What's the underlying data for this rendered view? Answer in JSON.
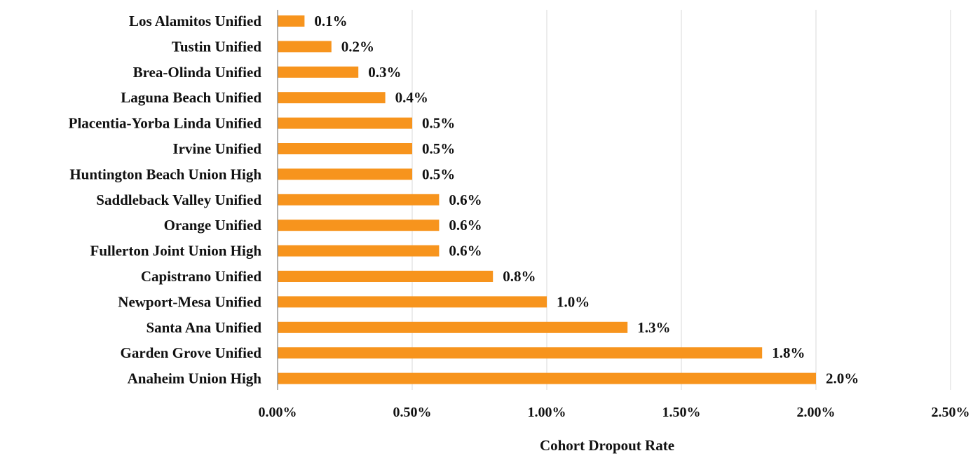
{
  "chart_data": {
    "type": "bar",
    "orientation": "horizontal",
    "categories": [
      "Los Alamitos Unified",
      "Tustin Unified",
      "Brea-Olinda Unified",
      "Laguna Beach Unified",
      "Placentia-Yorba Linda Unified",
      "Irvine Unified",
      "Huntington Beach Union High",
      "Saddleback Valley Unified",
      "Orange Unified",
      "Fullerton Joint Union High",
      "Capistrano Unified",
      "Newport-Mesa Unified",
      "Santa Ana Unified",
      "Garden Grove Unified",
      "Anaheim Union High"
    ],
    "values": [
      0.1,
      0.2,
      0.3,
      0.4,
      0.5,
      0.5,
      0.5,
      0.6,
      0.6,
      0.6,
      0.8,
      1.0,
      1.3,
      1.8,
      2.0
    ],
    "data_labels": [
      "0.1%",
      "0.2%",
      "0.3%",
      "0.4%",
      "0.5%",
      "0.5%",
      "0.5%",
      "0.6%",
      "0.6%",
      "0.6%",
      "0.8%",
      "1.0%",
      "1.3%",
      "1.8%",
      "2.0%"
    ],
    "title": "",
    "xlabel": "Cohort Dropout Rate",
    "ylabel": "",
    "xlim": [
      0,
      2.5
    ],
    "xticks": [
      0,
      0.5,
      1.0,
      1.5,
      2.0,
      2.5
    ],
    "xtick_labels": [
      "0.00%",
      "0.50%",
      "1.00%",
      "1.50%",
      "2.00%",
      "2.50%"
    ],
    "grid": "vertical",
    "legend": "none",
    "bar_color": "#F7941D"
  }
}
